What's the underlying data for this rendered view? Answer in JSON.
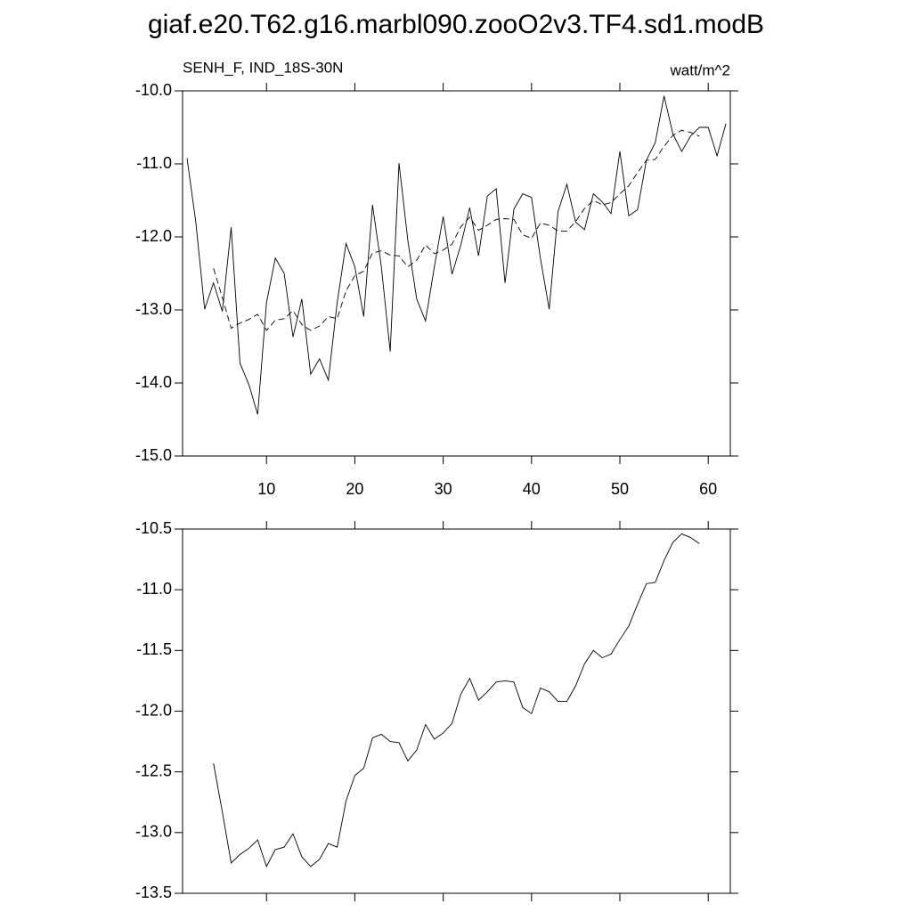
{
  "title": "giaf.e20.T62.g16.marbl090.zooO2v3.TF4.sd1.modB",
  "chart_data": [
    {
      "type": "line",
      "left_string": "SENH_F, IND_18S-30N",
      "right_string": "watt/m^2",
      "x": [
        1,
        2,
        3,
        4,
        5,
        6,
        7,
        8,
        9,
        10,
        11,
        12,
        13,
        14,
        15,
        16,
        17,
        18,
        19,
        20,
        21,
        22,
        23,
        24,
        25,
        26,
        27,
        28,
        29,
        30,
        31,
        32,
        33,
        34,
        35,
        36,
        37,
        38,
        39,
        40,
        41,
        42,
        43,
        44,
        45,
        46,
        47,
        48,
        49,
        50,
        51,
        52,
        53,
        54,
        55,
        56,
        57,
        58,
        59,
        60,
        61,
        62
      ],
      "xlim": [
        0.5,
        62.5
      ],
      "xticks": [
        10,
        20,
        30,
        40,
        50,
        60
      ],
      "ylim": [
        -15,
        -10
      ],
      "yticks": [
        {
          "value": -15,
          "label": "-15.0"
        },
        {
          "value": -14,
          "label": "-14.0"
        },
        {
          "value": -13,
          "label": "-13.0"
        },
        {
          "value": -12,
          "label": "-12.0"
        },
        {
          "value": -11,
          "label": "-11.0"
        },
        {
          "value": -10,
          "label": "-10.0"
        }
      ],
      "series": [
        {
          "color": "#000000",
          "line_style": "solid",
          "values": [
            -10.92,
            -11.8,
            -12.99,
            -12.63,
            -13.02,
            -11.87,
            -13.73,
            -14.02,
            -14.43,
            -12.9,
            -12.29,
            -12.5,
            -13.37,
            -12.85,
            -13.88,
            -13.67,
            -13.96,
            -12.9,
            -12.09,
            -12.41,
            -13.09,
            -11.56,
            -12.41,
            -13.57,
            -10.99,
            -12.05,
            -12.85,
            -13.15,
            -12.41,
            -11.72,
            -12.51,
            -12.11,
            -11.6,
            -12.26,
            -11.44,
            -11.34,
            -12.63,
            -11.62,
            -11.41,
            -11.46,
            -12.29,
            -12.99,
            -11.65,
            -11.28,
            -11.8,
            -11.9,
            -11.41,
            -11.52,
            -11.68,
            -10.83,
            -11.71,
            -11.63,
            -10.95,
            -10.71,
            -10.07,
            -10.59,
            -10.83,
            -10.62,
            -10.5,
            -10.5,
            -10.89,
            -10.45
          ]
        },
        {
          "color": "#000000",
          "line_style": "dashed",
          "values": [
            null,
            null,
            null,
            -12.43,
            -12.83,
            -13.25,
            -13.18,
            -13.13,
            -13.06,
            -13.28,
            -13.14,
            -13.12,
            -13.01,
            -13.2,
            -13.28,
            -13.22,
            -13.09,
            -13.12,
            -12.74,
            -12.53,
            -12.47,
            -12.22,
            -12.19,
            -12.25,
            -12.26,
            -12.41,
            -12.32,
            -12.11,
            -12.23,
            -12.18,
            -12.1,
            -11.86,
            -11.73,
            -11.91,
            -11.84,
            -11.76,
            -11.75,
            -11.76,
            -11.97,
            -12.02,
            -11.81,
            -11.84,
            -11.92,
            -11.92,
            -11.79,
            -11.61,
            -11.5,
            -11.56,
            -11.53,
            -11.41,
            -11.3,
            -11.12,
            -10.95,
            -10.94,
            -10.76,
            -10.61,
            -10.54,
            -10.57,
            -10.62,
            null,
            null,
            null
          ]
        }
      ]
    },
    {
      "type": "line",
      "x": [
        1,
        2,
        3,
        4,
        5,
        6,
        7,
        8,
        9,
        10,
        11,
        12,
        13,
        14,
        15,
        16,
        17,
        18,
        19,
        20,
        21,
        22,
        23,
        24,
        25,
        26,
        27,
        28,
        29,
        30,
        31,
        32,
        33,
        34,
        35,
        36,
        37,
        38,
        39,
        40,
        41,
        42,
        43,
        44,
        45,
        46,
        47,
        48,
        49,
        50,
        51,
        52,
        53,
        54,
        55,
        56,
        57,
        58,
        59,
        60,
        61,
        62
      ],
      "xlim": [
        0.5,
        62.5
      ],
      "ylim": [
        -13.5,
        -10.5
      ],
      "yticks": [
        {
          "value": -13.5,
          "label": "-13.5"
        },
        {
          "value": -13,
          "label": "-13.0"
        },
        {
          "value": -12.5,
          "label": "-12.5"
        },
        {
          "value": -12,
          "label": "-12.0"
        },
        {
          "value": -11.5,
          "label": "-11.5"
        },
        {
          "value": -11,
          "label": "-11.0"
        },
        {
          "value": -10.5,
          "label": "-10.5"
        }
      ],
      "series": [
        {
          "color": "#000000",
          "line_style": "solid",
          "values": [
            null,
            null,
            null,
            -12.43,
            -12.83,
            -13.25,
            -13.18,
            -13.13,
            -13.06,
            -13.28,
            -13.14,
            -13.12,
            -13.01,
            -13.2,
            -13.28,
            -13.22,
            -13.09,
            -13.12,
            -12.74,
            -12.53,
            -12.47,
            -12.22,
            -12.19,
            -12.25,
            -12.26,
            -12.41,
            -12.32,
            -12.11,
            -12.23,
            -12.18,
            -12.1,
            -11.86,
            -11.73,
            -11.91,
            -11.84,
            -11.76,
            -11.75,
            -11.76,
            -11.97,
            -12.02,
            -11.81,
            -11.84,
            -11.92,
            -11.92,
            -11.79,
            -11.61,
            -11.5,
            -11.56,
            -11.53,
            -11.41,
            -11.3,
            -11.12,
            -10.95,
            -10.94,
            -10.76,
            -10.61,
            -10.54,
            -10.57,
            -10.62,
            null,
            null,
            null
          ]
        }
      ]
    }
  ]
}
